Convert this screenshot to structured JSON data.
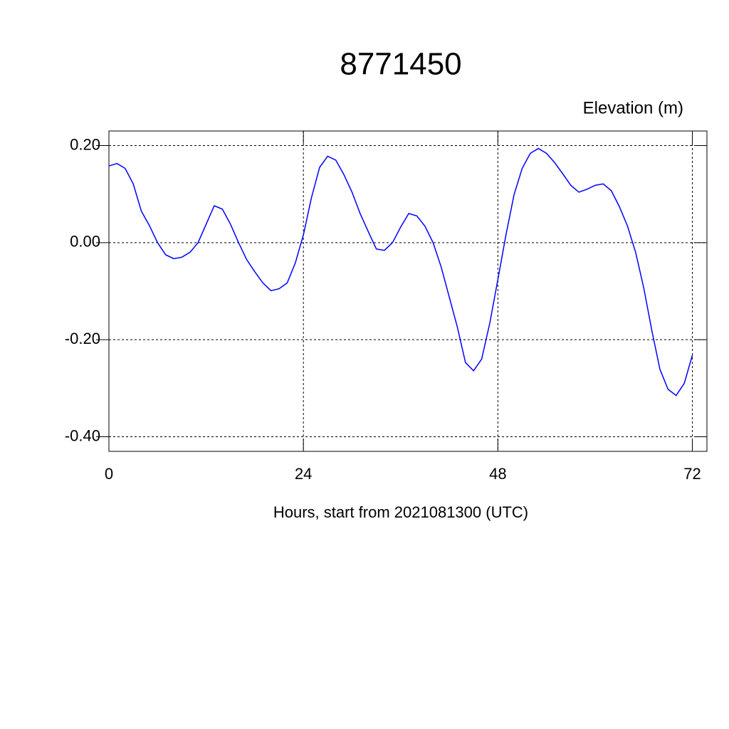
{
  "chart_data": {
    "type": "line",
    "title": "8771450",
    "subtitle": "Elevation (m)",
    "x_label": "Hours, start from 2021081300 (UTC)",
    "x": [
      0,
      1,
      2,
      3,
      4,
      5,
      6,
      7,
      8,
      9,
      10,
      11,
      12,
      13,
      14,
      15,
      16,
      17,
      18,
      19,
      20,
      21,
      22,
      23,
      24,
      25,
      26,
      27,
      28,
      29,
      30,
      31,
      32,
      33,
      34,
      35,
      36,
      37,
      38,
      39,
      40,
      41,
      42,
      43,
      44,
      45,
      46,
      47,
      48,
      49,
      50,
      51,
      52,
      53,
      54,
      55,
      56,
      57,
      58,
      59,
      60,
      61,
      62,
      63,
      64,
      65,
      66,
      67,
      68,
      69,
      70,
      71,
      72
    ],
    "series": [
      {
        "name": "Elevation",
        "color": "#0000ff",
        "values": [
          0.158,
          0.163,
          0.153,
          0.121,
          0.065,
          0.035,
          0.0,
          -0.025,
          -0.033,
          -0.03,
          -0.02,
          0.0,
          0.038,
          0.076,
          0.069,
          0.038,
          0.0,
          -0.035,
          -0.06,
          -0.083,
          -0.099,
          -0.095,
          -0.083,
          -0.042,
          0.016,
          0.093,
          0.155,
          0.178,
          0.17,
          0.14,
          0.104,
          0.06,
          0.023,
          -0.013,
          -0.016,
          0.0,
          0.032,
          0.06,
          0.055,
          0.034,
          0.0,
          -0.05,
          -0.112,
          -0.174,
          -0.247,
          -0.264,
          -0.24,
          -0.166,
          -0.076,
          0.016,
          0.099,
          0.153,
          0.184,
          0.194,
          0.184,
          0.165,
          0.142,
          0.118,
          0.104,
          0.11,
          0.118,
          0.121,
          0.107,
          0.074,
          0.034,
          -0.02,
          -0.093,
          -0.181,
          -0.261,
          -0.302,
          -0.315,
          -0.29,
          -0.232
        ]
      }
    ],
    "xlim": [
      0,
      73.8
    ],
    "ylim": [
      -0.43,
      0.23
    ],
    "xticks": [
      0,
      24,
      48,
      72
    ],
    "yticks": [
      {
        "value": -0.4,
        "label": "-0.40"
      },
      {
        "value": -0.2,
        "label": "-0.20"
      },
      {
        "value": 0,
        "label": "0.00"
      },
      {
        "value": 0.2,
        "label": "0.20"
      }
    ],
    "grid": true
  }
}
